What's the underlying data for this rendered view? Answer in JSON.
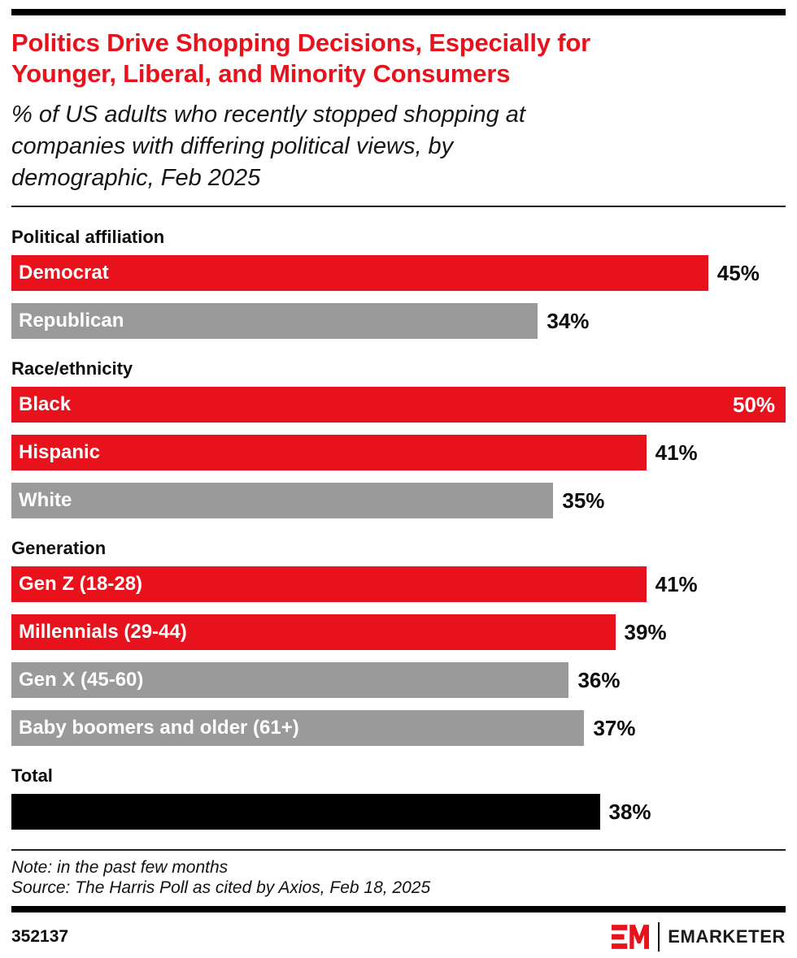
{
  "colors": {
    "red": "#e8121d",
    "gray": "#9a9a9a",
    "black": "#000000",
    "white_label": "#ffffff"
  },
  "header": {
    "title_lines": [
      "Politics Drive Shopping Decisions, Especially for",
      "Younger, Liberal, and Minority Consumers"
    ],
    "subtitle_lines": [
      "% of US adults who recently stopped shopping at",
      "companies with differing political views, by",
      "demographic, Feb 2025"
    ]
  },
  "chart_data": {
    "type": "bar",
    "orientation": "horizontal",
    "title": "Politics Drive Shopping Decisions, Especially for Younger, Liberal, and Minority Consumers",
    "subtitle": "% of US adults who recently stopped shopping at companies with differing political views, by demographic, Feb 2025",
    "unit": "%",
    "xlim": [
      0,
      50
    ],
    "grid": false,
    "legend": "none",
    "groups": [
      {
        "label": "Political affiliation",
        "bars": [
          {
            "label": "Democrat",
            "value": 45,
            "color": "red",
            "value_inside": false
          },
          {
            "label": "Republican",
            "value": 34,
            "color": "gray",
            "value_inside": false
          }
        ]
      },
      {
        "label": "Race/ethnicity",
        "bars": [
          {
            "label": "Black",
            "value": 50,
            "color": "red",
            "value_inside": true
          },
          {
            "label": "Hispanic",
            "value": 41,
            "color": "red",
            "value_inside": false
          },
          {
            "label": "White",
            "value": 35,
            "color": "gray",
            "value_inside": false
          }
        ]
      },
      {
        "label": "Generation",
        "bars": [
          {
            "label": "Gen Z (18-28)",
            "value": 41,
            "color": "red",
            "value_inside": false
          },
          {
            "label": "Millennials (29-44)",
            "value": 39,
            "color": "red",
            "value_inside": false
          },
          {
            "label": "Gen X (45-60)",
            "value": 36,
            "color": "gray",
            "value_inside": false
          },
          {
            "label": "Baby boomers and older (61+)",
            "value": 37,
            "color": "gray",
            "value_inside": false
          }
        ]
      },
      {
        "label": "Total",
        "bars": [
          {
            "label": "",
            "value": 38,
            "color": "black",
            "value_inside": false
          }
        ]
      }
    ]
  },
  "footer": {
    "note": "Note: in the past few months",
    "source": "Source: The Harris Poll as cited by Axios, Feb 18, 2025",
    "chart_id": "352137",
    "brand": "EMARKETER"
  }
}
